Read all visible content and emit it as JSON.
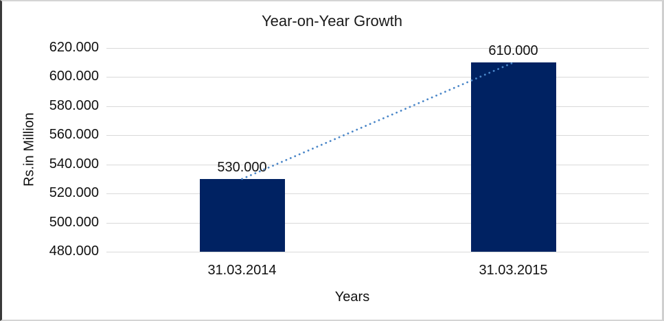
{
  "chart_data": {
    "type": "bar",
    "title": "Year-on-Year Growth",
    "xlabel": "Years",
    "ylabel": "Rs.in Million",
    "categories": [
      "31.03.2014",
      "31.03.2015"
    ],
    "values": [
      530,
      610
    ],
    "value_labels": [
      "530.000",
      "610.000"
    ],
    "ylim": [
      480,
      620
    ],
    "ytick_step": 20,
    "ytick_labels": [
      "480.000",
      "500.000",
      "520.000",
      "540.000",
      "560.000",
      "580.000",
      "600.000",
      "620.000"
    ],
    "grid": "horizontal-light-gray",
    "legend": "none",
    "colors": {
      "bar_fill": "#002262",
      "trendline": "#4a86c8",
      "gridline": "#d9d9d9",
      "text": "#111111"
    },
    "trendline": {
      "style": "dotted",
      "connects": "bar-top-centers",
      "values": [
        530,
        610
      ]
    }
  }
}
